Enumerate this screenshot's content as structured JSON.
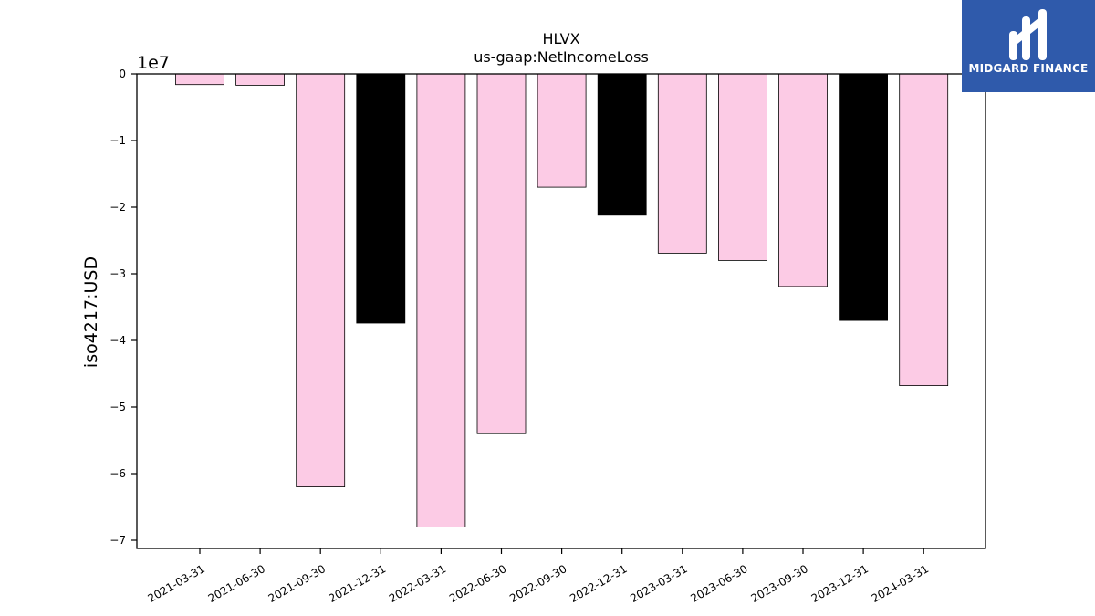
{
  "brand": {
    "name": "MIDGARD FINANCE",
    "bg_color": "#2f5aab",
    "icon": "midgard-logo-icon"
  },
  "chart_data": {
    "type": "bar",
    "title": "HLVX",
    "subtitle": "us-gaap:NetIncomeLoss",
    "ylabel": "iso4217:USD",
    "xlabel": "",
    "offset_label": "1e7",
    "ylim": [
      -7.1,
      0
    ],
    "yticks": [
      0,
      -1,
      -2,
      -3,
      -4,
      -5,
      -6,
      -7
    ],
    "ytick_labels": [
      "0",
      "−1",
      "−2",
      "−3",
      "−4",
      "−5",
      "−6",
      "−7"
    ],
    "categories": [
      "2021-03-31",
      "2021-06-30",
      "2021-09-30",
      "2021-12-31",
      "2022-03-31",
      "2022-06-30",
      "2022-09-30",
      "2022-12-31",
      "2023-03-31",
      "2023-06-30",
      "2023-09-30",
      "2023-12-31",
      "2024-03-31"
    ],
    "values": [
      -0.16,
      -0.17,
      -6.2,
      -3.74,
      -6.8,
      -5.4,
      -1.7,
      -2.12,
      -2.69,
      -2.8,
      -3.19,
      -3.7,
      -4.68
    ],
    "colors": [
      "#fccbe5",
      "#fccbe5",
      "#fccbe5",
      "#000000",
      "#fccbe5",
      "#fccbe5",
      "#fccbe5",
      "#000000",
      "#fccbe5",
      "#fccbe5",
      "#fccbe5",
      "#000000",
      "#fccbe5"
    ],
    "grid": false,
    "legend": "none"
  }
}
